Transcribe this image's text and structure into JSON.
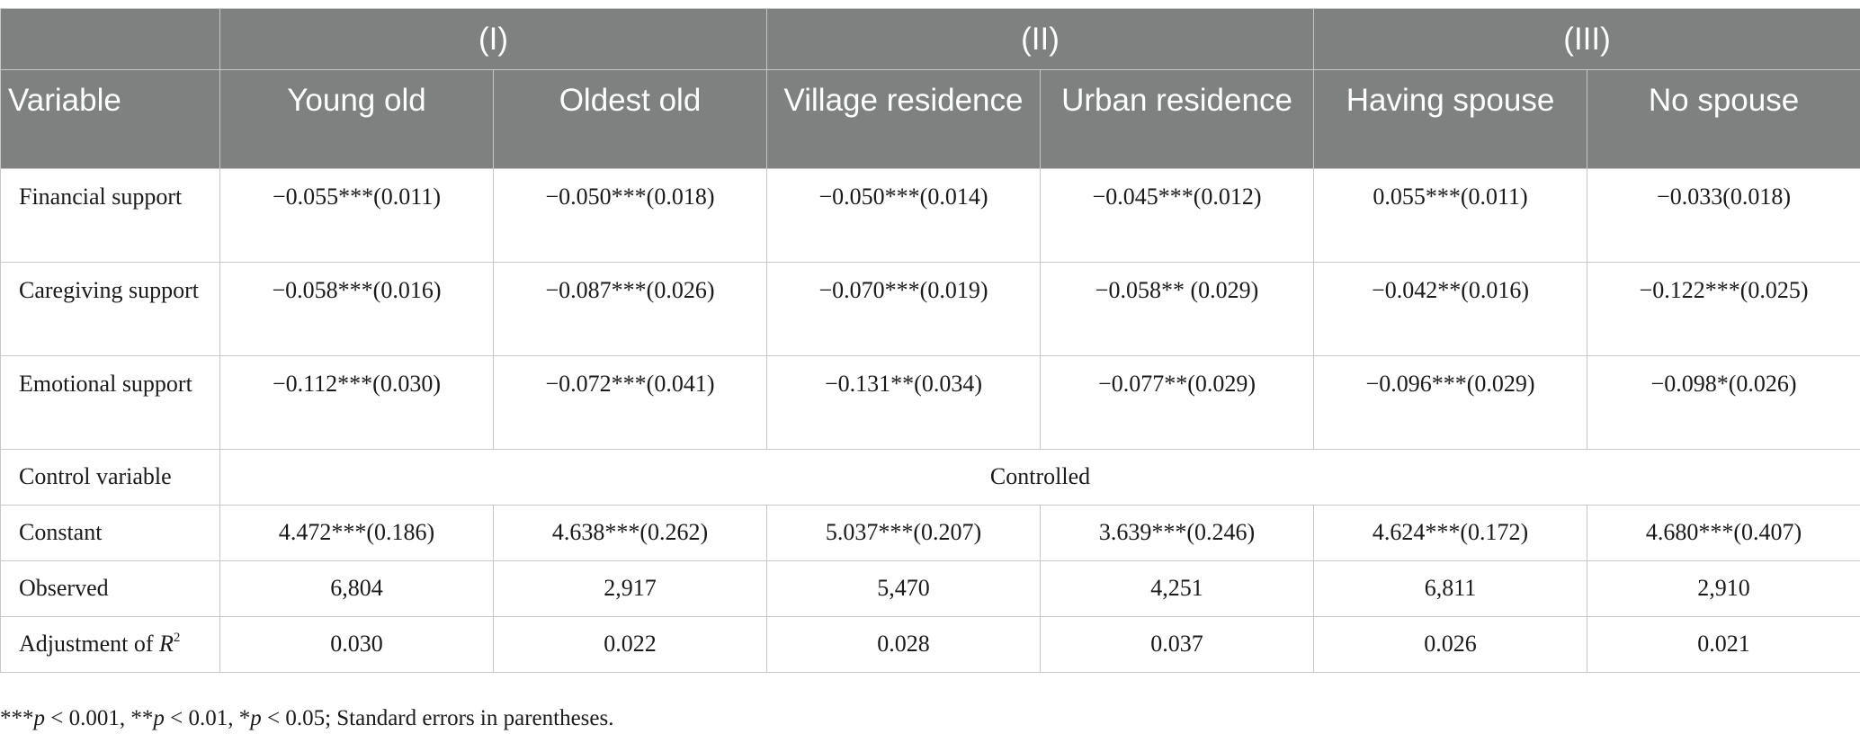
{
  "table": {
    "group_headers": [
      "",
      "(I)",
      "(II)",
      "(III)"
    ],
    "column_headers": [
      "Variable",
      "Young old",
      "Oldest old",
      "Village residence",
      "Urban residence",
      "Having spouse",
      "No spouse"
    ],
    "rows": [
      {
        "label": "Financial support",
        "cells": [
          "−0.055***(0.011)",
          "−0.050***(0.018)",
          "−0.050***(0.014)",
          "−0.045***(0.012)",
          "0.055***(0.011)",
          "−0.033(0.018)"
        ]
      },
      {
        "label": "Caregiving support",
        "cells": [
          "−0.058***(0.016)",
          "−0.087***(0.026)",
          "−0.070***(0.019)",
          "−0.058** (0.029)",
          "−0.042**(0.016)",
          "−0.122***(0.025)"
        ]
      },
      {
        "label": "Emotional support",
        "cells": [
          "−0.112***(0.030)",
          "−0.072***(0.041)",
          "−0.131**(0.034)",
          "−0.077**(0.029)",
          "−0.096***(0.029)",
          "−0.098*(0.026)"
        ]
      }
    ],
    "control": {
      "label": "Control variable",
      "value": "Controlled"
    },
    "constant": {
      "label": "Constant",
      "cells": [
        "4.472***(0.186)",
        "4.638***(0.262)",
        "5.037***(0.207)",
        "3.639***(0.246)",
        "4.624***(0.172)",
        "4.680***(0.407)"
      ]
    },
    "observed": {
      "label": "Observed",
      "cells": [
        "6,804",
        "2,917",
        "5,470",
        "4,251",
        "6,811",
        "2,910"
      ]
    },
    "adjusted": {
      "label": "Adjustment of ",
      "symbol": "R",
      "superscript": "2",
      "cells": [
        "0.030",
        "0.022",
        "0.028",
        "0.037",
        "0.026",
        "0.021"
      ]
    }
  },
  "footnote": {
    "parts": [
      "***",
      "p",
      " < 0.001, **",
      "p",
      " < 0.01, *",
      "p",
      " < 0.05; Standard errors in parentheses."
    ]
  },
  "colors": {
    "header_bg": "#7f8180",
    "header_text": "#ffffff",
    "border": "#c7c7c7"
  }
}
